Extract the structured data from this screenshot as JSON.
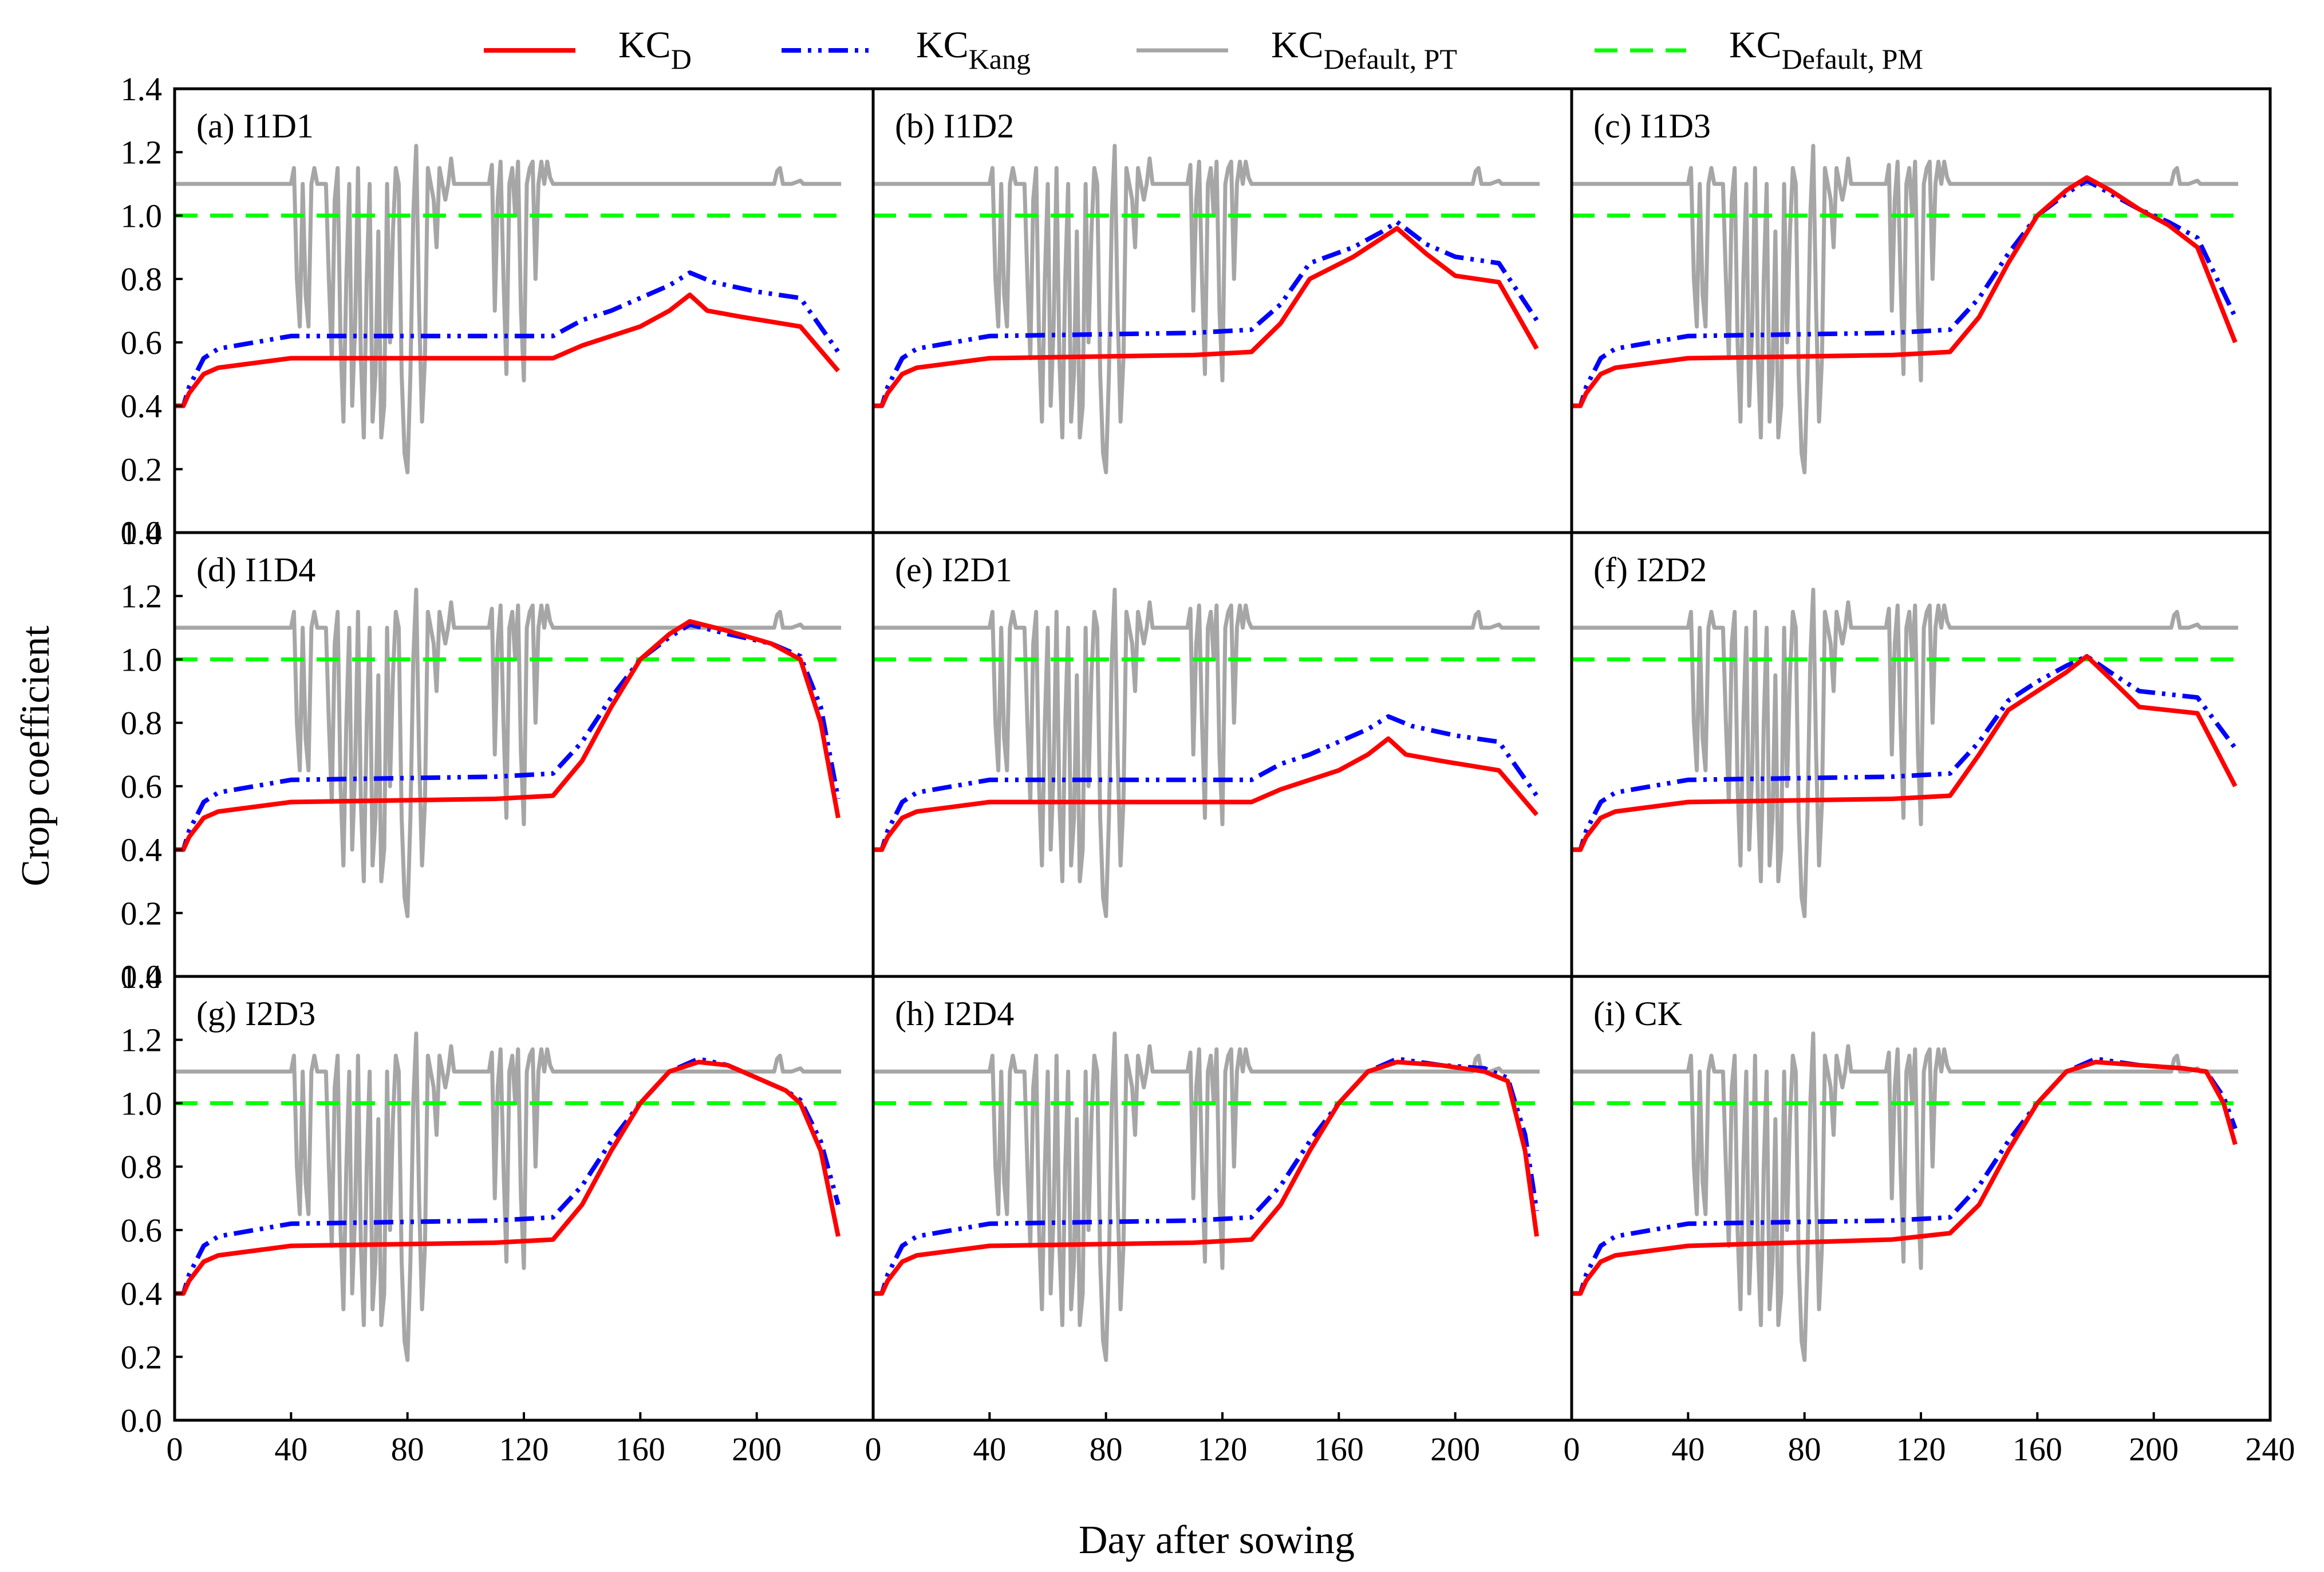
{
  "chart_data": {
    "type": "line",
    "layout": "3x3 small multiples",
    "xlabel": "Day after sowing",
    "ylabel": "Crop coefficient",
    "xlim": [
      0,
      240
    ],
    "ylim": [
      0,
      1.4
    ],
    "xticks": [
      "0",
      "40",
      "80",
      "120",
      "160",
      "200",
      "240"
    ],
    "xtick_values": [
      0,
      40,
      80,
      120,
      160,
      200,
      240
    ],
    "yticks": [
      "0.0",
      "0.2",
      "0.4",
      "0.6",
      "0.8",
      "1.0",
      "1.2",
      "1.4"
    ],
    "ytick_values": [
      0,
      0.2,
      0.4,
      0.6,
      0.8,
      1.0,
      1.2,
      1.4
    ],
    "legend_position": "top-center",
    "legend": [
      {
        "key": "kcd",
        "base": "KC",
        "sub": "D",
        "color": "#ff0000",
        "style": "solid"
      },
      {
        "key": "kang",
        "base": "KC",
        "sub": "Kang",
        "color": "#0000ff",
        "style": "dash-dot-dot"
      },
      {
        "key": "pt",
        "base": "KC",
        "sub": "Default, PT",
        "color": "#a6a6a6",
        "style": "solid"
      },
      {
        "key": "pm",
        "base": "KC",
        "sub": "Default, PM",
        "color": "#00ff00",
        "style": "dashed"
      }
    ],
    "kc_default_pt": {
      "x": [
        0,
        40,
        41,
        42,
        43,
        44,
        45,
        46,
        47,
        48,
        49,
        50,
        52,
        53,
        54,
        55,
        56,
        57,
        58,
        59,
        60,
        61,
        62,
        63,
        64,
        65,
        66,
        67,
        68,
        69,
        70,
        71,
        72,
        73,
        74,
        75,
        76,
        77,
        78,
        79,
        80,
        81,
        82,
        83,
        84,
        85,
        86,
        87,
        88,
        89,
        90,
        91,
        92,
        93,
        94,
        95,
        96,
        98,
        108,
        109,
        110,
        111,
        112,
        113,
        114,
        115,
        116,
        117,
        118,
        119,
        120,
        121,
        122,
        123,
        124,
        125,
        126,
        127,
        128,
        129,
        130,
        206,
        207,
        208,
        209,
        212,
        215,
        216,
        229
      ],
      "values": [
        1.1,
        1.1,
        1.15,
        0.8,
        0.65,
        1.1,
        0.75,
        0.65,
        1.1,
        1.15,
        1.1,
        1.1,
        1.1,
        0.8,
        0.55,
        1.05,
        1.15,
        0.6,
        0.35,
        0.8,
        1.1,
        0.4,
        0.65,
        1.15,
        0.55,
        0.3,
        0.8,
        1.1,
        0.35,
        0.5,
        0.95,
        0.3,
        0.4,
        1.1,
        0.6,
        0.95,
        1.15,
        1.1,
        0.5,
        0.25,
        0.19,
        0.5,
        1.0,
        1.22,
        0.7,
        0.35,
        0.55,
        1.15,
        1.1,
        1.05,
        0.9,
        1.15,
        1.1,
        1.05,
        1.1,
        1.18,
        1.1,
        1.1,
        1.1,
        1.16,
        0.7,
        1.05,
        1.17,
        0.8,
        0.5,
        1.1,
        1.15,
        1.0,
        1.17,
        0.7,
        0.48,
        1.1,
        1.15,
        1.17,
        0.8,
        1.1,
        1.17,
        1.1,
        1.17,
        1.12,
        1.1,
        1.1,
        1.14,
        1.15,
        1.1,
        1.1,
        1.11,
        1.1,
        1.1
      ]
    },
    "kc_default_pm": {
      "x": [
        0,
        229
      ],
      "values": [
        1.0,
        1.0
      ]
    },
    "panels": [
      {
        "label": "(a) I1D1",
        "kcd": {
          "x": [
            0,
            3,
            5,
            10,
            15,
            40,
            100,
            130,
            140,
            150,
            160,
            170,
            177,
            183,
            195,
            215,
            228
          ],
          "values": [
            0.4,
            0.4,
            0.44,
            0.5,
            0.52,
            0.55,
            0.55,
            0.55,
            0.59,
            0.62,
            0.65,
            0.7,
            0.75,
            0.7,
            0.68,
            0.65,
            0.51
          ]
        },
        "kang": {
          "x": [
            0,
            3,
            5,
            10,
            15,
            40,
            100,
            130,
            140,
            150,
            160,
            170,
            177,
            185,
            200,
            215,
            228
          ],
          "values": [
            0.4,
            0.4,
            0.46,
            0.55,
            0.58,
            0.62,
            0.62,
            0.62,
            0.67,
            0.7,
            0.74,
            0.78,
            0.82,
            0.79,
            0.76,
            0.74,
            0.57
          ]
        }
      },
      {
        "label": "(b) I1D2",
        "kcd": {
          "x": [
            0,
            3,
            5,
            10,
            15,
            40,
            110,
            130,
            140,
            150,
            165,
            175,
            180,
            190,
            200,
            215,
            228
          ],
          "values": [
            0.4,
            0.4,
            0.44,
            0.5,
            0.52,
            0.55,
            0.56,
            0.57,
            0.66,
            0.8,
            0.87,
            0.93,
            0.96,
            0.88,
            0.81,
            0.79,
            0.58
          ]
        },
        "kang": {
          "x": [
            0,
            3,
            5,
            10,
            15,
            40,
            110,
            130,
            140,
            150,
            165,
            175,
            180,
            190,
            200,
            215,
            228
          ],
          "values": [
            0.4,
            0.4,
            0.46,
            0.55,
            0.58,
            0.62,
            0.63,
            0.64,
            0.72,
            0.85,
            0.9,
            0.95,
            0.98,
            0.91,
            0.87,
            0.85,
            0.67
          ]
        }
      },
      {
        "label": "(c) I1D3",
        "kcd": {
          "x": [
            0,
            3,
            5,
            10,
            15,
            40,
            110,
            130,
            140,
            150,
            160,
            170,
            177,
            185,
            195,
            205,
            215,
            228
          ],
          "values": [
            0.4,
            0.4,
            0.44,
            0.5,
            0.52,
            0.55,
            0.56,
            0.57,
            0.68,
            0.85,
            1.0,
            1.08,
            1.12,
            1.08,
            1.02,
            0.97,
            0.9,
            0.6
          ]
        },
        "kang": {
          "x": [
            0,
            3,
            5,
            10,
            15,
            40,
            110,
            130,
            140,
            150,
            160,
            170,
            177,
            185,
            195,
            205,
            215,
            228
          ],
          "values": [
            0.4,
            0.4,
            0.46,
            0.55,
            0.58,
            0.62,
            0.63,
            0.64,
            0.74,
            0.88,
            1.0,
            1.07,
            1.11,
            1.07,
            1.02,
            0.98,
            0.93,
            0.68
          ]
        }
      },
      {
        "label": "(d) I1D4",
        "kcd": {
          "x": [
            0,
            3,
            5,
            10,
            15,
            40,
            110,
            130,
            140,
            150,
            160,
            170,
            177,
            190,
            205,
            215,
            222,
            228
          ],
          "values": [
            0.4,
            0.4,
            0.44,
            0.5,
            0.52,
            0.55,
            0.56,
            0.57,
            0.68,
            0.85,
            1.0,
            1.08,
            1.12,
            1.09,
            1.05,
            1.0,
            0.8,
            0.5
          ]
        },
        "kang": {
          "x": [
            0,
            3,
            5,
            10,
            15,
            40,
            110,
            130,
            140,
            150,
            160,
            170,
            177,
            190,
            205,
            215,
            222,
            228
          ],
          "values": [
            0.4,
            0.4,
            0.46,
            0.55,
            0.58,
            0.62,
            0.63,
            0.64,
            0.74,
            0.88,
            1.0,
            1.07,
            1.11,
            1.08,
            1.05,
            1.01,
            0.85,
            0.56
          ]
        }
      },
      {
        "label": "(e) I2D1",
        "kcd": {
          "x": [
            0,
            3,
            5,
            10,
            15,
            40,
            100,
            130,
            140,
            150,
            160,
            170,
            177,
            183,
            195,
            215,
            228
          ],
          "values": [
            0.4,
            0.4,
            0.44,
            0.5,
            0.52,
            0.55,
            0.55,
            0.55,
            0.59,
            0.62,
            0.65,
            0.7,
            0.75,
            0.7,
            0.68,
            0.65,
            0.51
          ]
        },
        "kang": {
          "x": [
            0,
            3,
            5,
            10,
            15,
            40,
            100,
            130,
            140,
            150,
            160,
            170,
            177,
            185,
            200,
            215,
            228
          ],
          "values": [
            0.4,
            0.4,
            0.46,
            0.55,
            0.58,
            0.62,
            0.62,
            0.62,
            0.67,
            0.7,
            0.74,
            0.78,
            0.82,
            0.79,
            0.76,
            0.74,
            0.57
          ]
        }
      },
      {
        "label": "(f) I2D2",
        "kcd": {
          "x": [
            0,
            3,
            5,
            10,
            15,
            40,
            110,
            130,
            140,
            150,
            160,
            170,
            177,
            185,
            195,
            215,
            228
          ],
          "values": [
            0.4,
            0.4,
            0.44,
            0.5,
            0.52,
            0.55,
            0.56,
            0.57,
            0.7,
            0.84,
            0.9,
            0.96,
            1.01,
            0.94,
            0.85,
            0.83,
            0.6
          ]
        },
        "kang": {
          "x": [
            0,
            3,
            5,
            10,
            15,
            40,
            110,
            130,
            140,
            150,
            160,
            170,
            177,
            185,
            195,
            215,
            228
          ],
          "values": [
            0.4,
            0.4,
            0.46,
            0.55,
            0.58,
            0.62,
            0.63,
            0.64,
            0.74,
            0.87,
            0.93,
            0.98,
            1.01,
            0.96,
            0.9,
            0.88,
            0.72
          ]
        }
      },
      {
        "label": "(g) I2D3",
        "kcd": {
          "x": [
            0,
            3,
            5,
            10,
            15,
            40,
            110,
            130,
            140,
            150,
            160,
            170,
            180,
            190,
            200,
            210,
            215,
            222,
            228
          ],
          "values": [
            0.4,
            0.4,
            0.44,
            0.5,
            0.52,
            0.55,
            0.56,
            0.57,
            0.68,
            0.85,
            1.0,
            1.1,
            1.13,
            1.12,
            1.08,
            1.04,
            1.0,
            0.85,
            0.58
          ]
        },
        "kang": {
          "x": [
            0,
            3,
            5,
            10,
            15,
            40,
            110,
            130,
            140,
            150,
            160,
            170,
            180,
            190,
            200,
            210,
            215,
            222,
            228
          ],
          "values": [
            0.4,
            0.4,
            0.46,
            0.55,
            0.58,
            0.62,
            0.63,
            0.64,
            0.74,
            0.88,
            1.0,
            1.1,
            1.14,
            1.12,
            1.08,
            1.04,
            1.01,
            0.88,
            0.68
          ]
        }
      },
      {
        "label": "(h) I2D4",
        "kcd": {
          "x": [
            0,
            3,
            5,
            10,
            15,
            40,
            110,
            130,
            140,
            150,
            160,
            170,
            180,
            195,
            210,
            218,
            224,
            228
          ],
          "values": [
            0.4,
            0.4,
            0.44,
            0.5,
            0.52,
            0.55,
            0.56,
            0.57,
            0.68,
            0.85,
            1.0,
            1.1,
            1.13,
            1.12,
            1.1,
            1.07,
            0.85,
            0.58
          ]
        },
        "kang": {
          "x": [
            0,
            3,
            5,
            10,
            15,
            40,
            110,
            130,
            140,
            150,
            160,
            170,
            180,
            195,
            210,
            218,
            224,
            228
          ],
          "values": [
            0.4,
            0.4,
            0.46,
            0.55,
            0.58,
            0.62,
            0.63,
            0.64,
            0.74,
            0.88,
            1.0,
            1.1,
            1.14,
            1.12,
            1.11,
            1.08,
            0.9,
            0.66
          ]
        }
      },
      {
        "label": "(i) CK",
        "kcd": {
          "x": [
            0,
            3,
            5,
            10,
            15,
            40,
            110,
            130,
            140,
            150,
            160,
            170,
            180,
            195,
            210,
            218,
            224,
            228
          ],
          "values": [
            0.4,
            0.4,
            0.44,
            0.5,
            0.52,
            0.55,
            0.57,
            0.59,
            0.68,
            0.85,
            1.0,
            1.1,
            1.13,
            1.12,
            1.11,
            1.1,
            1.0,
            0.87
          ]
        },
        "kang": {
          "x": [
            0,
            3,
            5,
            10,
            15,
            40,
            110,
            130,
            140,
            150,
            160,
            170,
            180,
            195,
            210,
            218,
            224,
            228
          ],
          "values": [
            0.4,
            0.4,
            0.46,
            0.55,
            0.58,
            0.62,
            0.63,
            0.64,
            0.74,
            0.88,
            1.0,
            1.1,
            1.14,
            1.12,
            1.11,
            1.1,
            1.02,
            0.92
          ]
        }
      }
    ]
  }
}
